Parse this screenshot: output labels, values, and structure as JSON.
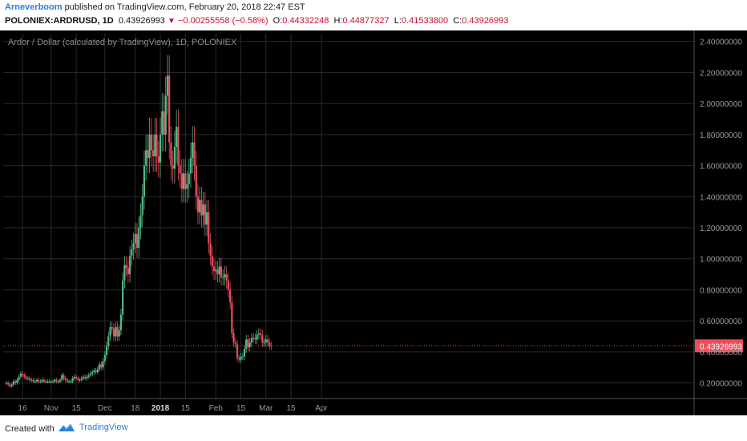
{
  "header": {
    "author": "Arneverboom",
    "published_text": " published on TradingView.com, February 20, 2018 22:47 EST",
    "symbol": "POLONIEX:ARDRUSD, 1D",
    "last": "0.43926993",
    "triangle": "▼",
    "change": "−0.00255558 (−0.58%)",
    "o_label": "O:",
    "o_value": "0.44332248",
    "h_label": "H:",
    "h_value": "0.44877327",
    "l_label": "L:",
    "l_value": "0.41533800",
    "c_label": "C:",
    "c_value": "0.43926993"
  },
  "footer": {
    "created_with": "Created with",
    "brand": "TradingView"
  },
  "colors": {
    "background": "#000000",
    "up": "#53b987",
    "down": "#eb4d5c",
    "grid": "#2a2a2a",
    "axis_text": "#999999",
    "price_line": "#eb4d5c"
  },
  "chart_data": {
    "type": "candlestick",
    "title": "Ardor / Dollar (calculated by TradingView), 1D, POLONIEX",
    "ylim": [
      0.1,
      2.45
    ],
    "yticks": [
      0.2,
      0.4,
      0.6,
      0.8,
      1.0,
      1.2,
      1.4,
      1.6,
      1.8,
      2.0,
      2.2,
      2.4
    ],
    "ytick_labels": [
      "0.20000000",
      "0.40000000",
      "0.60000000",
      "0.80000000",
      "1.00000000",
      "1.20000000",
      "1.40000000",
      "1.60000000",
      "1.80000000",
      "2.00000000",
      "2.20000000",
      "2.40000000"
    ],
    "xticks": [
      {
        "date": "2017-10-16",
        "label": "16"
      },
      {
        "date": "2017-11-01",
        "label": "Nov"
      },
      {
        "date": "2017-11-15",
        "label": "15"
      },
      {
        "date": "2017-12-01",
        "label": "Dec"
      },
      {
        "date": "2017-12-18",
        "label": "18"
      },
      {
        "date": "2018-01-01",
        "label": "2018"
      },
      {
        "date": "2018-01-15",
        "label": "15"
      },
      {
        "date": "2018-02-01",
        "label": "Feb"
      },
      {
        "date": "2018-02-15",
        "label": "15"
      },
      {
        "date": "2018-03-01",
        "label": "Mar"
      },
      {
        "date": "2018-03-15",
        "label": "15"
      },
      {
        "date": "2018-04-01",
        "label": "Apr"
      }
    ],
    "last_price_label": "0.43926993",
    "last_price": 0.43927,
    "series": [
      {
        "date": "2017-10-07",
        "close": 0.2
      },
      {
        "date": "2017-10-08",
        "close": 0.19
      },
      {
        "date": "2017-10-09",
        "close": 0.18
      },
      {
        "date": "2017-10-10",
        "close": 0.19
      },
      {
        "date": "2017-10-11",
        "close": 0.21
      },
      {
        "date": "2017-10-12",
        "close": 0.2
      },
      {
        "date": "2017-10-13",
        "close": 0.22
      },
      {
        "date": "2017-10-14",
        "close": 0.24
      },
      {
        "date": "2017-10-15",
        "close": 0.26
      },
      {
        "date": "2017-10-16",
        "close": 0.25
      },
      {
        "date": "2017-10-17",
        "close": 0.24
      },
      {
        "date": "2017-10-18",
        "close": 0.23
      },
      {
        "date": "2017-10-19",
        "close": 0.23
      },
      {
        "date": "2017-10-20",
        "close": 0.22
      },
      {
        "date": "2017-10-21",
        "close": 0.22
      },
      {
        "date": "2017-10-22",
        "close": 0.21
      },
      {
        "date": "2017-10-23",
        "close": 0.21
      },
      {
        "date": "2017-10-24",
        "close": 0.22
      },
      {
        "date": "2017-10-25",
        "close": 0.21
      },
      {
        "date": "2017-10-26",
        "close": 0.21
      },
      {
        "date": "2017-10-27",
        "close": 0.22
      },
      {
        "date": "2017-10-28",
        "close": 0.21
      },
      {
        "date": "2017-10-29",
        "close": 0.21
      },
      {
        "date": "2017-10-30",
        "close": 0.21
      },
      {
        "date": "2017-10-31",
        "close": 0.21
      },
      {
        "date": "2017-11-01",
        "close": 0.21
      },
      {
        "date": "2017-11-02",
        "close": 0.21
      },
      {
        "date": "2017-11-03",
        "close": 0.22
      },
      {
        "date": "2017-11-04",
        "close": 0.21
      },
      {
        "date": "2017-11-05",
        "close": 0.21
      },
      {
        "date": "2017-11-06",
        "close": 0.22
      },
      {
        "date": "2017-11-07",
        "close": 0.25
      },
      {
        "date": "2017-11-08",
        "close": 0.23
      },
      {
        "date": "2017-11-09",
        "close": 0.22
      },
      {
        "date": "2017-11-10",
        "close": 0.21
      },
      {
        "date": "2017-11-11",
        "close": 0.21
      },
      {
        "date": "2017-11-12",
        "close": 0.21
      },
      {
        "date": "2017-11-13",
        "close": 0.23
      },
      {
        "date": "2017-11-14",
        "close": 0.24
      },
      {
        "date": "2017-11-15",
        "close": 0.23
      },
      {
        "date": "2017-11-16",
        "close": 0.22
      },
      {
        "date": "2017-11-17",
        "close": 0.22
      },
      {
        "date": "2017-11-18",
        "close": 0.23
      },
      {
        "date": "2017-11-19",
        "close": 0.24
      },
      {
        "date": "2017-11-20",
        "close": 0.23
      },
      {
        "date": "2017-11-21",
        "close": 0.24
      },
      {
        "date": "2017-11-22",
        "close": 0.25
      },
      {
        "date": "2017-11-23",
        "close": 0.26
      },
      {
        "date": "2017-11-24",
        "close": 0.27
      },
      {
        "date": "2017-11-25",
        "close": 0.28
      },
      {
        "date": "2017-11-26",
        "close": 0.27
      },
      {
        "date": "2017-11-27",
        "close": 0.29
      },
      {
        "date": "2017-11-28",
        "close": 0.32
      },
      {
        "date": "2017-11-29",
        "close": 0.3
      },
      {
        "date": "2017-11-30",
        "close": 0.34
      },
      {
        "date": "2017-12-01",
        "close": 0.38
      },
      {
        "date": "2017-12-02",
        "close": 0.44
      },
      {
        "date": "2017-12-03",
        "close": 0.5
      },
      {
        "date": "2017-12-04",
        "close": 0.56
      },
      {
        "date": "2017-12-05",
        "close": 0.55
      },
      {
        "date": "2017-12-06",
        "close": 0.5
      },
      {
        "date": "2017-12-07",
        "close": 0.56
      },
      {
        "date": "2017-12-08",
        "close": 0.5
      },
      {
        "date": "2017-12-09",
        "close": 0.54
      },
      {
        "date": "2017-12-10",
        "close": 0.64
      },
      {
        "date": "2017-12-11",
        "close": 0.86
      },
      {
        "date": "2017-12-12",
        "close": 0.96
      },
      {
        "date": "2017-12-13",
        "close": 0.94
      },
      {
        "date": "2017-12-14",
        "close": 0.9
      },
      {
        "date": "2017-12-15",
        "close": 1.02
      },
      {
        "date": "2017-12-16",
        "close": 1.06
      },
      {
        "date": "2017-12-17",
        "close": 1.1
      },
      {
        "date": "2017-12-18",
        "close": 1.16
      },
      {
        "date": "2017-12-19",
        "close": 1.07
      },
      {
        "date": "2017-12-20",
        "close": 1.2
      },
      {
        "date": "2017-12-21",
        "close": 1.28
      },
      {
        "date": "2017-12-22",
        "close": 1.4
      },
      {
        "date": "2017-12-23",
        "close": 1.6
      },
      {
        "date": "2017-12-24",
        "close": 1.7
      },
      {
        "date": "2017-12-25",
        "close": 1.65
      },
      {
        "date": "2017-12-26",
        "close": 1.8
      },
      {
        "date": "2017-12-27",
        "close": 1.7
      },
      {
        "date": "2017-12-28",
        "close": 1.66
      },
      {
        "date": "2017-12-29",
        "close": 1.8
      },
      {
        "date": "2017-12-30",
        "close": 1.66
      },
      {
        "date": "2017-12-31",
        "close": 1.62
      },
      {
        "date": "2018-01-01",
        "close": 1.8
      },
      {
        "date": "2018-01-02",
        "close": 1.95
      },
      {
        "date": "2018-01-03",
        "close": 1.8
      },
      {
        "date": "2018-01-04",
        "close": 2.05
      },
      {
        "date": "2018-01-05",
        "close": 2.18
      },
      {
        "date": "2018-01-06",
        "close": 1.75
      },
      {
        "date": "2018-01-07",
        "close": 1.6
      },
      {
        "date": "2018-01-08",
        "close": 1.58
      },
      {
        "date": "2018-01-09",
        "close": 1.72
      },
      {
        "date": "2018-01-10",
        "close": 1.85
      },
      {
        "date": "2018-01-11",
        "close": 1.6
      },
      {
        "date": "2018-01-12",
        "close": 1.55
      },
      {
        "date": "2018-01-13",
        "close": 1.45
      },
      {
        "date": "2018-01-14",
        "close": 1.55
      },
      {
        "date": "2018-01-15",
        "close": 1.45
      },
      {
        "date": "2018-01-16",
        "close": 1.48
      },
      {
        "date": "2018-01-17",
        "close": 1.55
      },
      {
        "date": "2018-01-18",
        "close": 1.65
      },
      {
        "date": "2018-01-19",
        "close": 1.75
      },
      {
        "date": "2018-01-20",
        "close": 1.6
      },
      {
        "date": "2018-01-21",
        "close": 1.4
      },
      {
        "date": "2018-01-22",
        "close": 1.3
      },
      {
        "date": "2018-01-23",
        "close": 1.38
      },
      {
        "date": "2018-01-24",
        "close": 1.28
      },
      {
        "date": "2018-01-25",
        "close": 1.35
      },
      {
        "date": "2018-01-26",
        "close": 1.22
      },
      {
        "date": "2018-01-27",
        "close": 1.3
      },
      {
        "date": "2018-01-28",
        "close": 1.1
      },
      {
        "date": "2018-01-29",
        "close": 1.02
      },
      {
        "date": "2018-01-30",
        "close": 0.95
      },
      {
        "date": "2018-01-31",
        "close": 0.92
      },
      {
        "date": "2018-02-01",
        "close": 0.93
      },
      {
        "date": "2018-02-02",
        "close": 0.9
      },
      {
        "date": "2018-02-03",
        "close": 0.95
      },
      {
        "date": "2018-02-04",
        "close": 0.88
      },
      {
        "date": "2018-02-05",
        "close": 0.88
      },
      {
        "date": "2018-02-06",
        "close": 0.9
      },
      {
        "date": "2018-02-07",
        "close": 0.86
      },
      {
        "date": "2018-02-08",
        "close": 0.8
      },
      {
        "date": "2018-02-09",
        "close": 0.72
      },
      {
        "date": "2018-02-10",
        "close": 0.52
      },
      {
        "date": "2018-02-11",
        "close": 0.46
      },
      {
        "date": "2018-02-12",
        "close": 0.45
      },
      {
        "date": "2018-02-13",
        "close": 0.36
      },
      {
        "date": "2018-02-14",
        "close": 0.35
      },
      {
        "date": "2018-02-15",
        "close": 0.37
      },
      {
        "date": "2018-02-16",
        "close": 0.37
      },
      {
        "date": "2018-02-17",
        "close": 0.42
      },
      {
        "date": "2018-02-18",
        "close": 0.48
      },
      {
        "date": "2018-02-19",
        "close": 0.43
      },
      {
        "date": "2018-02-20",
        "close": 0.46
      },
      {
        "date": "2018-02-21",
        "close": 0.49
      },
      {
        "date": "2018-02-22",
        "close": 0.49
      },
      {
        "date": "2018-02-23",
        "close": 0.48
      },
      {
        "date": "2018-02-24",
        "close": 0.51
      },
      {
        "date": "2018-02-25",
        "close": 0.52
      },
      {
        "date": "2018-02-26",
        "close": 0.51
      },
      {
        "date": "2018-02-27",
        "close": 0.46
      },
      {
        "date": "2018-02-28",
        "close": 0.46
      },
      {
        "date": "2018-03-01",
        "close": 0.48
      },
      {
        "date": "2018-03-02",
        "close": 0.46
      },
      {
        "date": "2018-03-03",
        "close": 0.44
      },
      {
        "date": "2018-03-04",
        "close": 0.43927
      }
    ]
  }
}
